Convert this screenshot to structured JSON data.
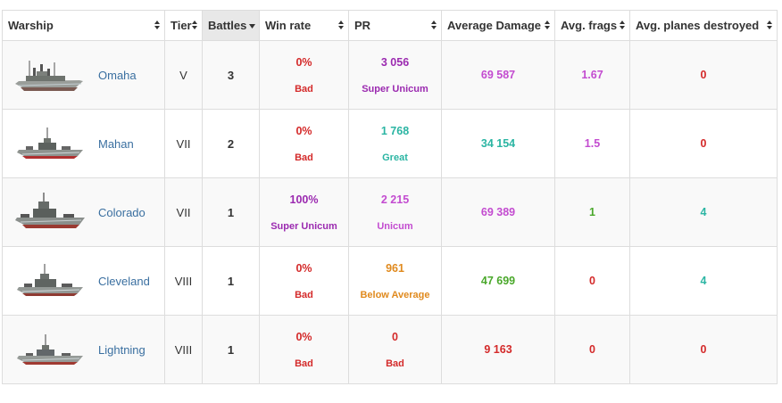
{
  "colors": {
    "bad": "#d42a2a",
    "great": "#2bb5a3",
    "unicum": "#c34cd0",
    "super_unicum": "#9b2ab0",
    "below_average": "#e08a1e",
    "good": "#4aa82b",
    "link": "#3a6fa0"
  },
  "columns": [
    {
      "label": "Warship"
    },
    {
      "label": "Tier"
    },
    {
      "label": "Battles"
    },
    {
      "label": "Win rate"
    },
    {
      "label": "PR"
    },
    {
      "label": "Average Damage"
    },
    {
      "label": "Avg. frags"
    },
    {
      "label": "Avg. planes destroyed"
    }
  ],
  "rows": [
    {
      "ship": "Omaha",
      "tier": "V",
      "battles": "3",
      "winrate": "0%",
      "winrate_rating": "Bad",
      "winrate_color": "#d42a2a",
      "pr": "3 056",
      "pr_rating": "Super Unicum",
      "pr_color": "#9b2ab0",
      "avg_damage": "69 587",
      "avg_damage_color": "#c34cd0",
      "avg_frags": "1.67",
      "avg_frags_color": "#c34cd0",
      "avg_planes": "0",
      "avg_planes_color": "#d42a2a"
    },
    {
      "ship": "Mahan",
      "tier": "VII",
      "battles": "2",
      "winrate": "0%",
      "winrate_rating": "Bad",
      "winrate_color": "#d42a2a",
      "pr": "1 768",
      "pr_rating": "Great",
      "pr_color": "#2bb5a3",
      "avg_damage": "34 154",
      "avg_damage_color": "#2bb5a3",
      "avg_frags": "1.5",
      "avg_frags_color": "#c34cd0",
      "avg_planes": "0",
      "avg_planes_color": "#d42a2a"
    },
    {
      "ship": "Colorado",
      "tier": "VII",
      "battles": "1",
      "winrate": "100%",
      "winrate_rating": "Super Unicum",
      "winrate_color": "#9b2ab0",
      "pr": "2 215",
      "pr_rating": "Unicum",
      "pr_color": "#c34cd0",
      "avg_damage": "69 389",
      "avg_damage_color": "#c34cd0",
      "avg_frags": "1",
      "avg_frags_color": "#4aa82b",
      "avg_planes": "4",
      "avg_planes_color": "#2bb5a3"
    },
    {
      "ship": "Cleveland",
      "tier": "VIII",
      "battles": "1",
      "winrate": "0%",
      "winrate_rating": "Bad",
      "winrate_color": "#d42a2a",
      "pr": "961",
      "pr_rating": "Below Average",
      "pr_color": "#e08a1e",
      "avg_damage": "47 699",
      "avg_damage_color": "#4aa82b",
      "avg_frags": "0",
      "avg_frags_color": "#d42a2a",
      "avg_planes": "4",
      "avg_planes_color": "#2bb5a3"
    },
    {
      "ship": "Lightning",
      "tier": "VIII",
      "battles": "1",
      "winrate": "0%",
      "winrate_rating": "Bad",
      "winrate_color": "#d42a2a",
      "pr": "0",
      "pr_rating": "Bad",
      "pr_color": "#d42a2a",
      "avg_damage": "9 163",
      "avg_damage_color": "#d42a2a",
      "avg_frags": "0",
      "avg_frags_color": "#d42a2a",
      "avg_planes": "0",
      "avg_planes_color": "#d42a2a"
    }
  ]
}
